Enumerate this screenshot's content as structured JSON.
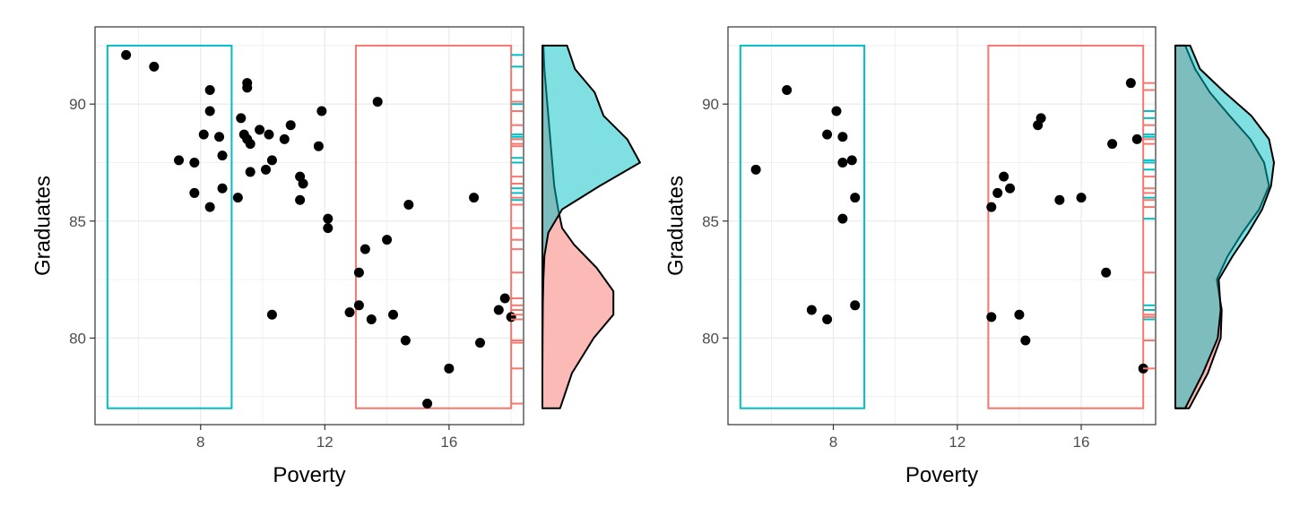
{
  "chart_data": [
    {
      "type": "scatter",
      "xlabel": "Poverty",
      "ylabel": "Graduates",
      "xlim": [
        4.6,
        18.4
      ],
      "ylim": [
        76.3,
        93.3
      ],
      "x_ticks": [
        8,
        12,
        16
      ],
      "y_ticks": [
        80,
        85,
        90
      ],
      "grid": true,
      "colors": {
        "low_region": "#00BFC4",
        "high_region": "#F8766D",
        "points": "#000000"
      },
      "regions": [
        {
          "group": "low",
          "x": [
            5,
            9
          ],
          "y": [
            77,
            92.5
          ]
        },
        {
          "group": "high",
          "x": [
            13,
            18
          ],
          "y": [
            77,
            92.5
          ]
        }
      ],
      "points": [
        [
          5.6,
          92.1
        ],
        [
          6.5,
          91.6
        ],
        [
          8.3,
          90.6
        ],
        [
          9.5,
          90.9
        ],
        [
          9.5,
          90.7
        ],
        [
          8.3,
          89.7
        ],
        [
          9.3,
          89.4
        ],
        [
          9.9,
          88.9
        ],
        [
          10.2,
          88.7
        ],
        [
          9.4,
          88.7
        ],
        [
          9.5,
          88.5
        ],
        [
          8.1,
          88.7
        ],
        [
          8.6,
          88.6
        ],
        [
          9.6,
          88.3
        ],
        [
          10.7,
          88.5
        ],
        [
          10.9,
          89.1
        ],
        [
          11.9,
          89.7
        ],
        [
          13.7,
          90.1
        ],
        [
          11.8,
          88.2
        ],
        [
          7.3,
          87.6
        ],
        [
          7.8,
          87.5
        ],
        [
          8.7,
          87.8
        ],
        [
          10.3,
          87.6
        ],
        [
          9.6,
          87.1
        ],
        [
          10.1,
          87.2
        ],
        [
          11.2,
          86.9
        ],
        [
          11.3,
          86.6
        ],
        [
          7.8,
          86.2
        ],
        [
          8.7,
          86.4
        ],
        [
          9.2,
          86.0
        ],
        [
          11.2,
          85.9
        ],
        [
          8.3,
          85.6
        ],
        [
          12.1,
          85.1
        ],
        [
          12.1,
          84.7
        ],
        [
          14.7,
          85.7
        ],
        [
          16.8,
          86.0
        ],
        [
          14.0,
          84.2
        ],
        [
          13.3,
          83.8
        ],
        [
          13.1,
          82.8
        ],
        [
          10.3,
          81.0
        ],
        [
          13.1,
          81.4
        ],
        [
          12.8,
          81.1
        ],
        [
          13.5,
          80.8
        ],
        [
          14.2,
          81.0
        ],
        [
          17.8,
          81.7
        ],
        [
          17.6,
          81.2
        ],
        [
          18.0,
          80.9
        ],
        [
          14.6,
          79.9
        ],
        [
          17.0,
          79.8
        ],
        [
          16.0,
          78.7
        ],
        [
          15.3,
          77.2
        ]
      ],
      "rug": [
        {
          "group": "low",
          "y": [
            92.1,
            91.6,
            90.6,
            90.0,
            89.7,
            88.7,
            88.6,
            88.5,
            87.7,
            87.5,
            86.4,
            86.2,
            85.9
          ]
        },
        {
          "group": "high",
          "y": [
            90.6,
            90.1,
            89.7,
            89.1,
            88.5,
            88.3,
            88.2,
            86.9,
            86.6,
            86.0,
            85.7,
            84.7,
            84.2,
            83.8,
            82.8,
            81.7,
            81.4,
            81.2,
            81.0,
            80.8,
            79.9,
            79.8,
            78.7,
            77.2
          ]
        }
      ],
      "density": [
        {
          "group": "low",
          "y": [
            77.0,
            78.5,
            80.0,
            81.5,
            82.5,
            83.5,
            84.5,
            85.5,
            86.5,
            87.5,
            88.5,
            89.5,
            90.5,
            91.5,
            92.5
          ],
          "d": [
            0.0,
            0.0,
            0.002,
            0.005,
            0.01,
            0.02,
            0.06,
            0.2,
            0.58,
            0.99,
            0.86,
            0.62,
            0.53,
            0.33,
            0.25
          ]
        },
        {
          "group": "high",
          "y": [
            77.0,
            78.5,
            80.0,
            81.0,
            82.0,
            83.0,
            84.0,
            84.7,
            85.5,
            86.5,
            87.5,
            88.5,
            89.5,
            90.5,
            91.5,
            92.5
          ],
          "d": [
            0.18,
            0.3,
            0.52,
            0.72,
            0.72,
            0.55,
            0.32,
            0.2,
            0.16,
            0.12,
            0.1,
            0.08,
            0.06,
            0.04,
            0.02,
            0.01
          ]
        }
      ]
    },
    {
      "type": "scatter",
      "xlabel": "Poverty",
      "ylabel": "Graduates",
      "xlim": [
        4.6,
        18.4
      ],
      "ylim": [
        76.3,
        93.3
      ],
      "x_ticks": [
        8,
        12,
        16
      ],
      "y_ticks": [
        80,
        85,
        90
      ],
      "grid": true,
      "colors": {
        "low_region": "#00BFC4",
        "high_region": "#F8766D",
        "points": "#000000"
      },
      "regions": [
        {
          "group": "low",
          "x": [
            5,
            9
          ],
          "y": [
            77,
            92.5
          ]
        },
        {
          "group": "high",
          "x": [
            13,
            18
          ],
          "y": [
            77,
            92.5
          ]
        }
      ],
      "points": [
        [
          6.5,
          90.6
        ],
        [
          8.1,
          89.7
        ],
        [
          7.8,
          88.7
        ],
        [
          8.3,
          88.6
        ],
        [
          8.6,
          87.6
        ],
        [
          8.3,
          87.5
        ],
        [
          5.5,
          87.2
        ],
        [
          8.7,
          86.0
        ],
        [
          8.3,
          85.1
        ],
        [
          7.3,
          81.2
        ],
        [
          7.8,
          80.8
        ],
        [
          8.7,
          81.4
        ],
        [
          17.6,
          90.9
        ],
        [
          14.7,
          89.4
        ],
        [
          14.6,
          89.1
        ],
        [
          17.0,
          88.3
        ],
        [
          17.8,
          88.5
        ],
        [
          13.5,
          86.9
        ],
        [
          13.3,
          86.2
        ],
        [
          13.7,
          86.4
        ],
        [
          15.3,
          85.9
        ],
        [
          16.0,
          86.0
        ],
        [
          13.1,
          85.6
        ],
        [
          16.8,
          82.8
        ],
        [
          13.1,
          80.9
        ],
        [
          14.0,
          81.0
        ],
        [
          14.2,
          79.9
        ],
        [
          18.0,
          78.7
        ]
      ],
      "rug": [
        {
          "group": "low",
          "y": [
            89.7,
            89.4,
            88.7,
            88.6,
            87.6,
            87.5,
            87.2,
            86.0,
            85.1,
            81.4,
            81.2,
            80.8
          ]
        },
        {
          "group": "high",
          "y": [
            90.9,
            90.6,
            89.1,
            88.5,
            88.3,
            86.9,
            86.4,
            86.2,
            85.9,
            85.6,
            82.8,
            81.0,
            80.9,
            79.9,
            78.7
          ]
        }
      ],
      "density": [
        {
          "group": "low",
          "y": [
            77.0,
            78.5,
            80.0,
            81.2,
            82.5,
            83.5,
            84.5,
            85.5,
            86.5,
            87.5,
            88.5,
            89.5,
            90.5,
            91.5,
            92.5
          ],
          "d": [
            0.1,
            0.28,
            0.43,
            0.46,
            0.44,
            0.58,
            0.74,
            0.88,
            0.97,
            1.0,
            0.95,
            0.77,
            0.5,
            0.25,
            0.15
          ]
        },
        {
          "group": "high",
          "y": [
            77.0,
            78.5,
            80.0,
            81.2,
            82.5,
            83.5,
            84.5,
            85.5,
            86.5,
            87.5,
            88.5,
            89.5,
            90.5,
            91.5,
            92.5
          ],
          "d": [
            0.14,
            0.33,
            0.46,
            0.47,
            0.42,
            0.53,
            0.68,
            0.85,
            0.95,
            0.9,
            0.76,
            0.55,
            0.35,
            0.2,
            0.1
          ]
        }
      ]
    }
  ]
}
